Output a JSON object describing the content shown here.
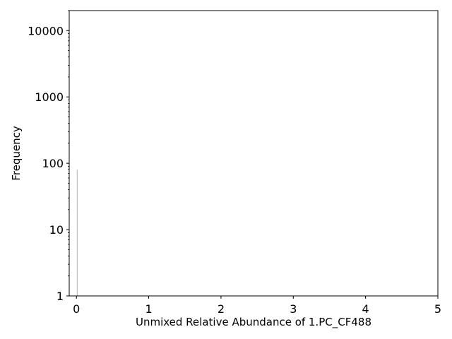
{
  "chart_data": {
    "type": "bar",
    "title": "",
    "xlabel": "Unmixed Relative Abundance of 1.PC_CF488",
    "ylabel": "Frequency",
    "xlim": [
      -0.1,
      5
    ],
    "ylim": [
      1,
      20000
    ],
    "yscale": "log",
    "grid": false,
    "legend": "none",
    "x_ticks": [
      {
        "value": 0,
        "label": "0"
      },
      {
        "value": 1,
        "label": "1"
      },
      {
        "value": 2,
        "label": "2"
      },
      {
        "value": 3,
        "label": "3"
      },
      {
        "value": 4,
        "label": "4"
      },
      {
        "value": 5,
        "label": "5"
      }
    ],
    "y_ticks": [
      {
        "value": 1,
        "label": "1"
      },
      {
        "value": 10,
        "label": "10"
      },
      {
        "value": 100,
        "label": "100"
      },
      {
        "value": 1000,
        "label": "1000"
      },
      {
        "value": 10000,
        "label": "10000"
      }
    ],
    "bins": [
      {
        "x": 0.01,
        "count": 80
      }
    ],
    "bar_color": "#b0b0b0"
  }
}
